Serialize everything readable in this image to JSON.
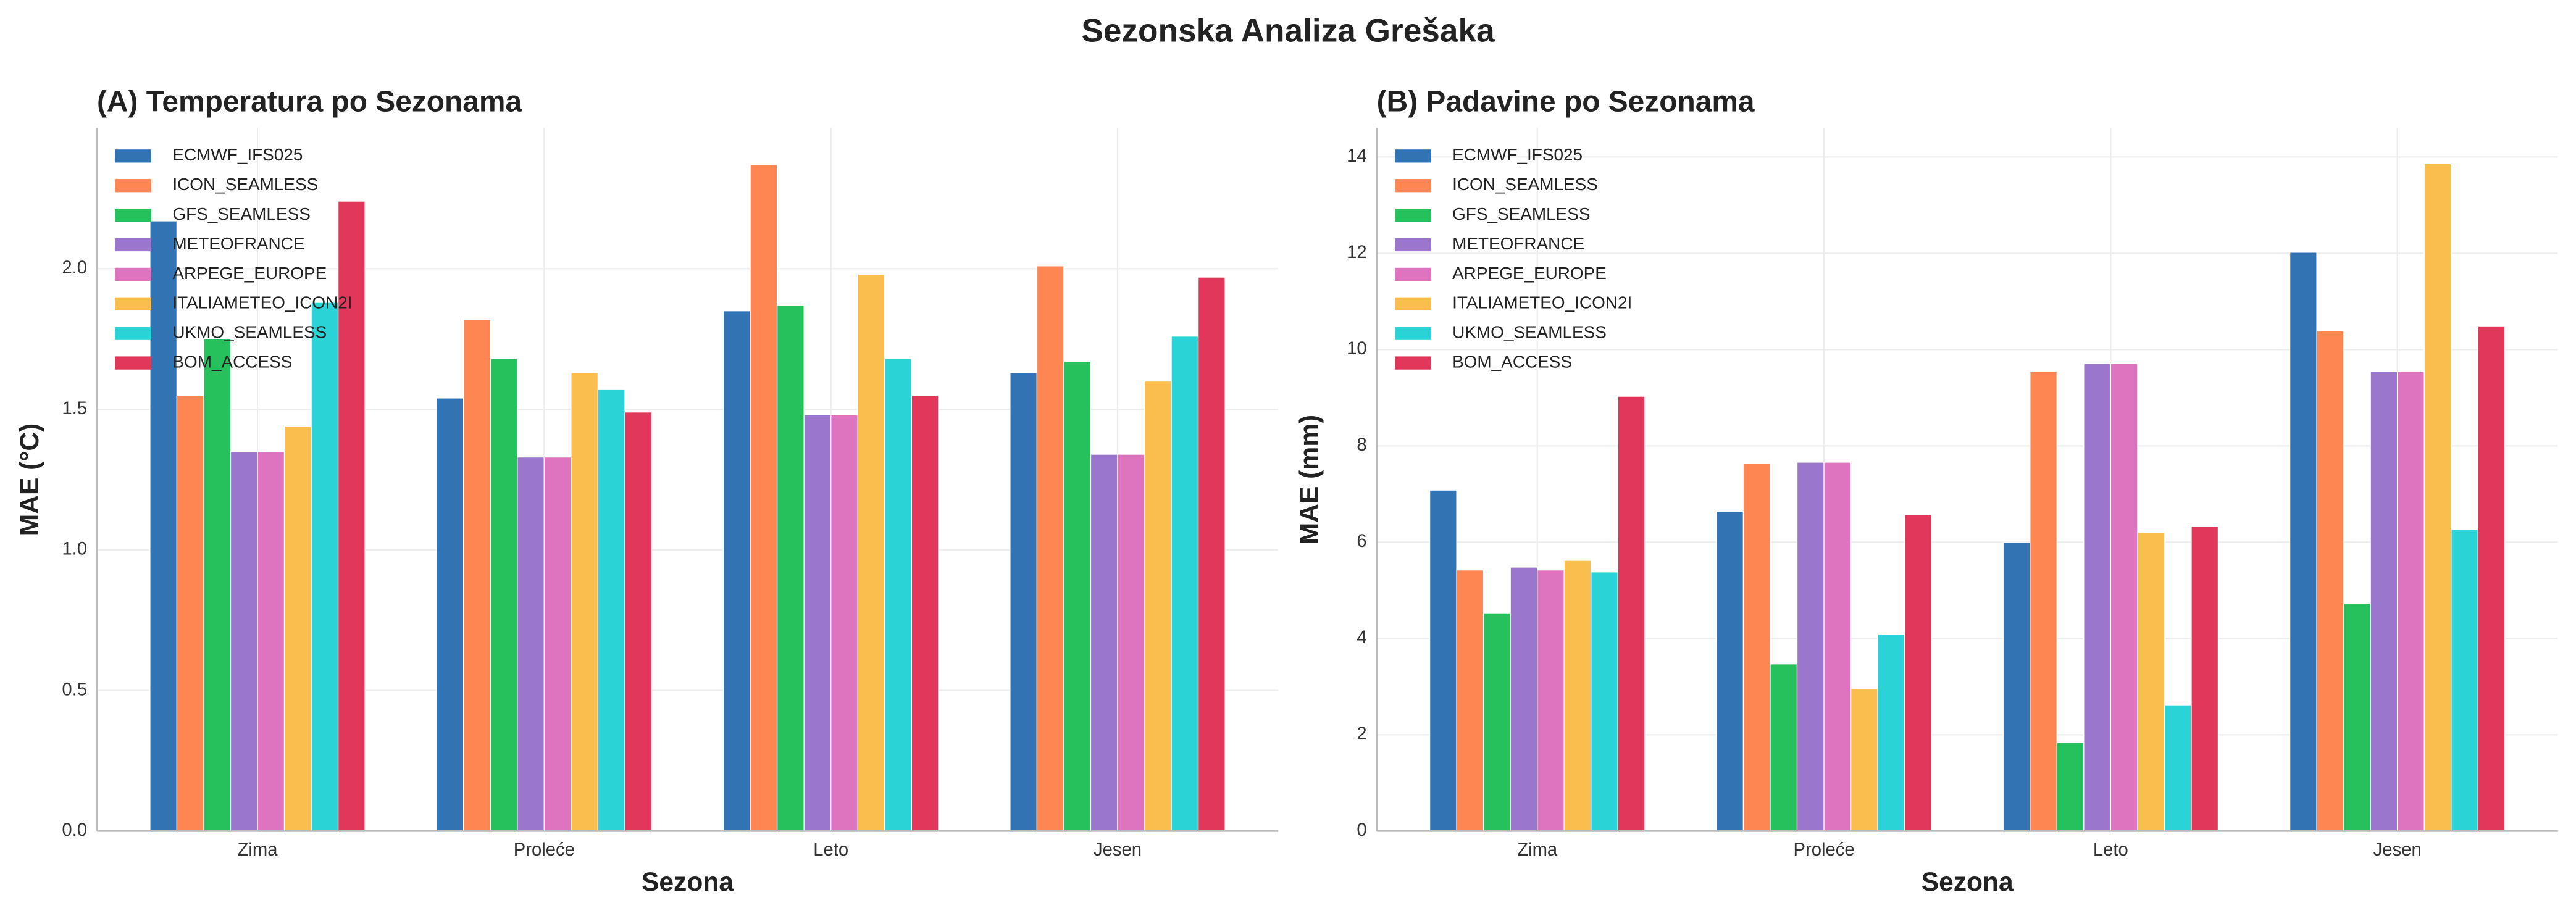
{
  "title": "Sezonska Analiza Grešaka",
  "chart_data": [
    {
      "type": "bar",
      "title": "(A) Temperatura po Sezonama",
      "x_label": "Sezona",
      "y_label": "MAE (°C)",
      "categories": [
        "Zima",
        "Proleće",
        "Leto",
        "Jesen"
      ],
      "ylim": [
        0,
        2.5
      ],
      "yticks": [
        {
          "value": 0,
          "label": "0.0"
        },
        {
          "value": 0.5,
          "label": "0.5"
        },
        {
          "value": 1,
          "label": "1.0"
        },
        {
          "value": 1.5,
          "label": "1.5"
        },
        {
          "value": 2,
          "label": "2.0"
        }
      ],
      "grid": true,
      "legend": "upper left",
      "series": [
        {
          "name": "ECMWF_IFS025",
          "color": "#3274b3",
          "values": [
            2.17,
            1.54,
            1.85,
            1.63
          ]
        },
        {
          "name": "ICON_SEAMLESS",
          "color": "#fd8653",
          "values": [
            1.55,
            1.82,
            2.37,
            2.01
          ]
        },
        {
          "name": "GFS_SEAMLESS",
          "color": "#26c05c",
          "values": [
            1.75,
            1.68,
            1.87,
            1.67
          ]
        },
        {
          "name": "METEOFRANCE",
          "color": "#9a76cc",
          "values": [
            1.35,
            1.33,
            1.48,
            1.34
          ]
        },
        {
          "name": "ARPEGE_EUROPE",
          "color": "#de74c0",
          "values": [
            1.35,
            1.33,
            1.48,
            1.34
          ]
        },
        {
          "name": "ITALIAMETEO_ICON2I",
          "color": "#f9be4e",
          "values": [
            1.44,
            1.63,
            1.98,
            1.6
          ]
        },
        {
          "name": "UKMO_SEAMLESS",
          "color": "#2ad4d6",
          "values": [
            1.88,
            1.57,
            1.68,
            1.76
          ]
        },
        {
          "name": "BOM_ACCESS",
          "color": "#e0375a",
          "values": [
            2.24,
            1.49,
            1.55,
            1.97
          ]
        }
      ]
    },
    {
      "type": "bar",
      "title": "(B) Padavine po Sezonama",
      "x_label": "Sezona",
      "y_label": "MAE (mm)",
      "categories": [
        "Zima",
        "Proleće",
        "Leto",
        "Jesen"
      ],
      "ylim": [
        0,
        14.6
      ],
      "yticks": [
        0,
        2,
        4,
        6,
        8,
        10,
        12,
        14
      ],
      "grid": true,
      "legend": "upper left",
      "series": [
        {
          "name": "ECMWF_IFS025",
          "color": "#3274b3",
          "values": [
            7.08,
            6.64,
            5.99,
            12.02
          ]
        },
        {
          "name": "ICON_SEAMLESS",
          "color": "#fd8653",
          "values": [
            5.42,
            7.63,
            9.54,
            10.39
          ]
        },
        {
          "name": "GFS_SEAMLESS",
          "color": "#26c05c",
          "values": [
            4.53,
            3.47,
            1.84,
            4.73
          ]
        },
        {
          "name": "METEOFRANCE",
          "color": "#9a76cc",
          "values": [
            5.48,
            7.66,
            9.71,
            9.54
          ]
        },
        {
          "name": "ARPEGE_EUROPE",
          "color": "#de74c0",
          "values": [
            5.42,
            7.66,
            9.71,
            9.54
          ]
        },
        {
          "name": "ITALIAMETEO_ICON2I",
          "color": "#f9be4e",
          "values": [
            5.62,
            2.96,
            6.2,
            13.86
          ]
        },
        {
          "name": "UKMO_SEAMLESS",
          "color": "#2ad4d6",
          "values": [
            5.38,
            4.09,
            2.62,
            6.27
          ]
        },
        {
          "name": "BOM_ACCESS",
          "color": "#e0375a",
          "values": [
            9.03,
            6.57,
            6.33,
            10.49
          ]
        }
      ]
    }
  ]
}
